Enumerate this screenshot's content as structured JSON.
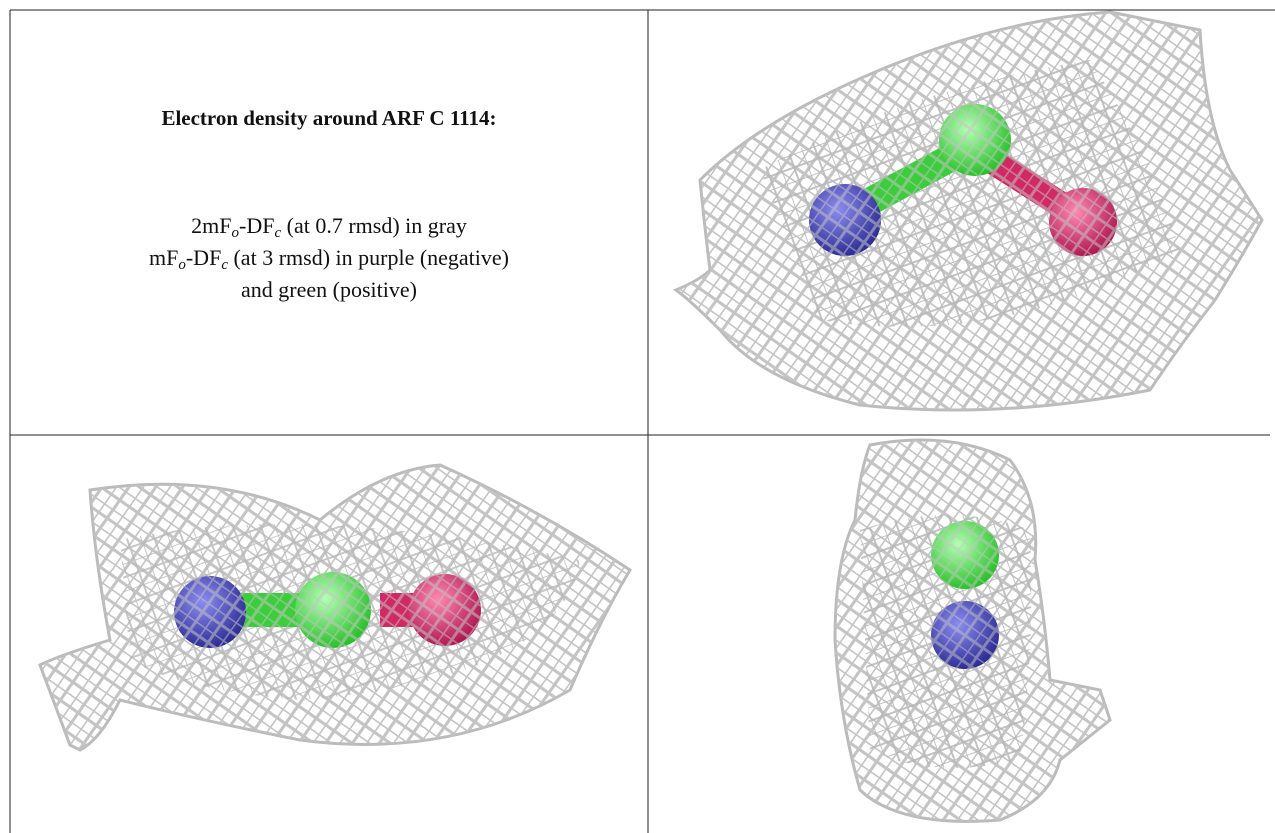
{
  "caption": {
    "title": "Electron density around ARF C 1114:",
    "lines": [
      [
        "2mF",
        "o",
        "-DF",
        "c",
        " (at 0.7 rmsd) in gray"
      ],
      [
        "mF",
        "o",
        "-DF",
        "c",
        " (at 3 rmsd) in purple (negative)"
      ],
      [
        "and green (positive)"
      ]
    ]
  }
}
